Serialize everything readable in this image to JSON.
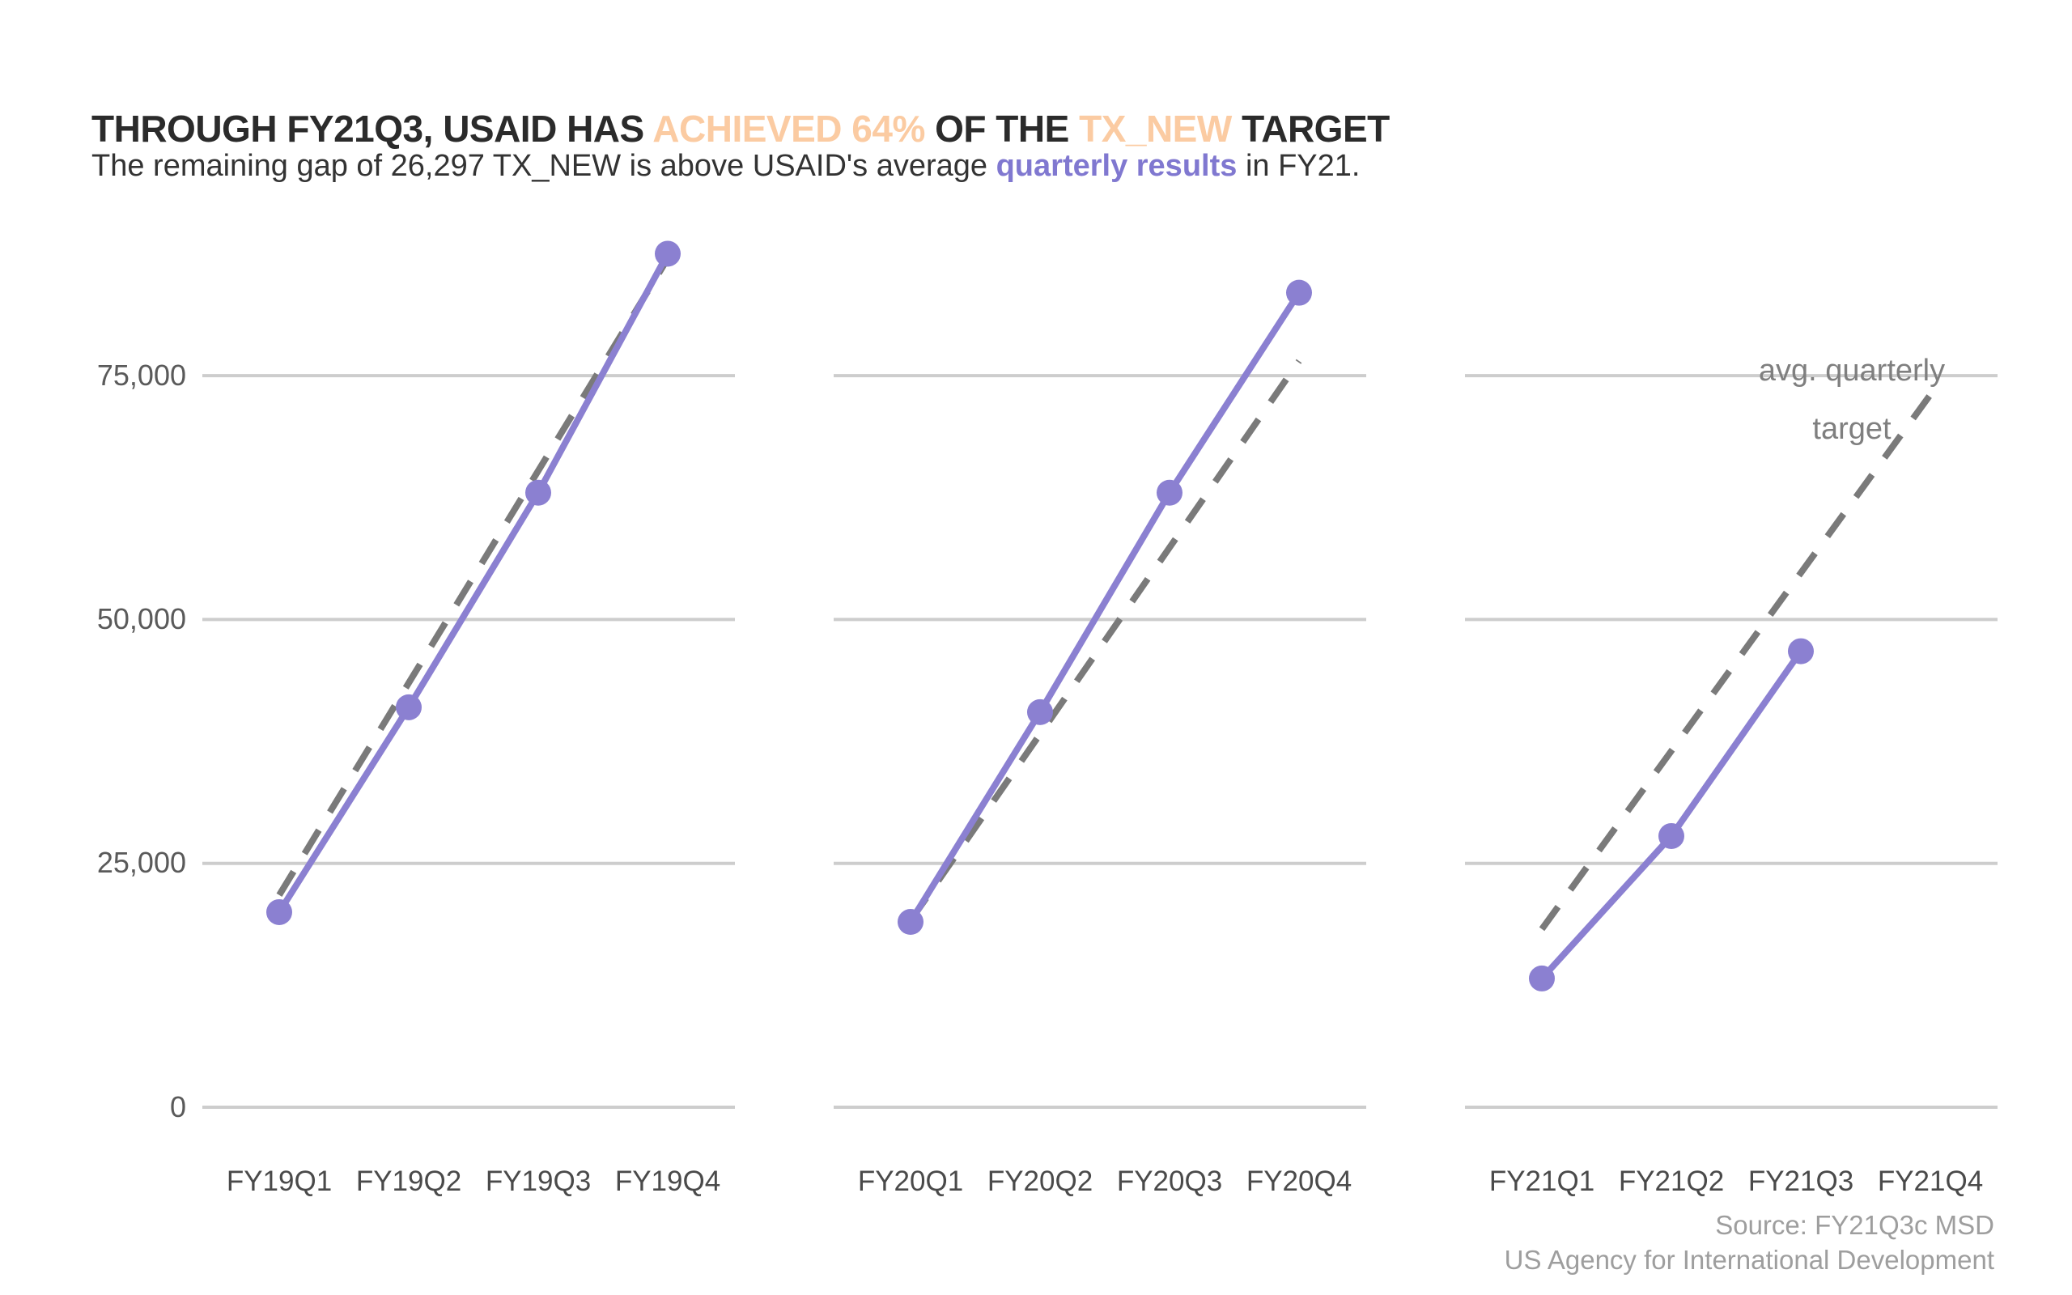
{
  "header": {
    "title_parts": {
      "p1": "THROUGH FY21Q3, USAID HAS ",
      "p2": "ACHIEVED 64% ",
      "p3": "OF THE ",
      "p4": "TX_NEW ",
      "p5": "TARGET"
    },
    "subtitle_parts": {
      "s1": "The remaining gap of 26,297 TX_NEW is above USAID's average ",
      "s2": "quarterly results",
      "s3": " in FY21."
    },
    "accent_peach": "#fbcba2",
    "accent_purple": "#8078d0"
  },
  "chart_data": {
    "type": "line",
    "title": "THROUGH FY21Q3, USAID HAS ACHIEVED 64% OF THE TX_NEW TARGET",
    "subtitle": "The remaining gap of 26,297 TX_NEW is above USAID's average quarterly results in FY21.",
    "ylabel": "",
    "xlabel": "",
    "grid": "horizontal",
    "ylim": [
      0,
      92000
    ],
    "y_axis": {
      "ticks": [
        "0",
        "25,000",
        "50,000",
        "75,000"
      ],
      "tick_values": [
        0,
        25000,
        50000,
        75000
      ]
    },
    "series_colors": {
      "actual": "#8b80d1",
      "target": "#7a7a7a"
    },
    "annotation": {
      "line1": "avg. quarterly",
      "line2": "target"
    },
    "panels": [
      {
        "name": "FY19",
        "categories": [
          "FY19Q1",
          "FY19Q2",
          "FY19Q3",
          "FY19Q4"
        ],
        "series": [
          {
            "name": "actual",
            "values": [
              20000,
              41000,
              63000,
              87500
            ]
          },
          {
            "name": "avg. quarterly target",
            "values": [
              21750,
              43500,
              65250,
              87000
            ]
          }
        ]
      },
      {
        "name": "FY20",
        "categories": [
          "FY20Q1",
          "FY20Q2",
          "FY20Q3",
          "FY20Q4"
        ],
        "series": [
          {
            "name": "actual",
            "values": [
              19000,
              40500,
              63000,
              83500
            ]
          },
          {
            "name": "avg. quarterly target",
            "values": [
              19125,
              38250,
              57375,
              76500
            ]
          }
        ]
      },
      {
        "name": "FY21",
        "categories": [
          "FY21Q1",
          "FY21Q2",
          "FY21Q3",
          "FY21Q4"
        ],
        "series": [
          {
            "name": "actual",
            "values": [
              13200,
              27800,
              46750
            ]
          },
          {
            "name": "avg. quarterly target",
            "values": [
              18262,
              36524,
              54786,
              73047
            ]
          }
        ]
      }
    ]
  },
  "source": {
    "line1": "Source: FY21Q3c MSD",
    "line2": "US Agency for International Development"
  }
}
